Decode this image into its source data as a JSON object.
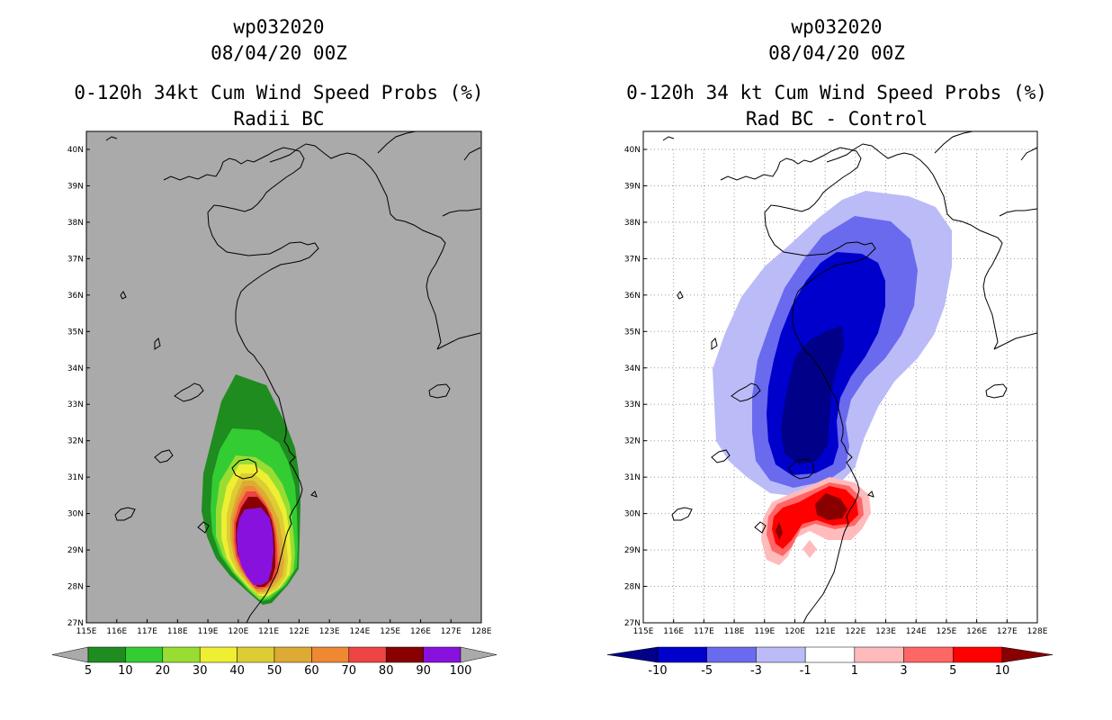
{
  "left_panel": {
    "storm_id": "wp032020",
    "datetime": "08/04/20 00Z",
    "title": "0-120h 34kt Cum Wind Speed Probs (%)",
    "subtitle": "Radii BC",
    "colorbar": {
      "labels": [
        "5",
        "10",
        "20",
        "30",
        "40",
        "50",
        "60",
        "70",
        "80",
        "90",
        "100"
      ],
      "colors": [
        "#1e8c1e",
        "#33cc33",
        "#99dd33",
        "#eeee33",
        "#ddcc33",
        "#ddaa33",
        "#ee8833",
        "#ee4444",
        "#880000",
        "#8811dd"
      ],
      "end_color": "#aaaaaa"
    },
    "colors": {
      "background": "#aaaaaa"
    }
  },
  "right_panel": {
    "storm_id": "wp032020",
    "datetime": "08/04/20 00Z",
    "title": "0-120h 34 kt Cum Wind Speed Probs (%)",
    "subtitle": "Rad BC - Control",
    "colorbar": {
      "labels": [
        "-10",
        "-5",
        "-3",
        "-1",
        "1",
        "3",
        "5",
        "10"
      ],
      "colors": [
        "#0000cc",
        "#6a6aee",
        "#bbbbf8",
        "#ffffff",
        "#ffbbbb",
        "#ff6666",
        "#ff0000"
      ],
      "low_end": "#000088",
      "high_end": "#880000"
    }
  },
  "axes": {
    "lon_labels": [
      "115E",
      "116E",
      "117E",
      "118E",
      "119E",
      "120E",
      "121E",
      "122E",
      "123E",
      "124E",
      "125E",
      "126E",
      "127E",
      "128E"
    ],
    "lat_labels": [
      "27N",
      "28N",
      "29N",
      "30N",
      "31N",
      "32N",
      "33N",
      "34N",
      "35N",
      "36N",
      "37N",
      "38N",
      "39N",
      "40N"
    ]
  },
  "field": {
    "units": "%",
    "left_probability_contours": [
      {
        "level": 5,
        "lat_range": [
          27.5,
          33.8
        ]
      },
      {
        "level": 10,
        "lat_range": [
          27.6,
          32.3
        ]
      },
      {
        "level": 20,
        "lat_range": [
          27.7,
          31.4
        ]
      },
      {
        "level": 30,
        "lat_range": [
          27.7,
          31.1
        ]
      },
      {
        "level": 40,
        "lat_range": [
          27.8,
          30.9
        ]
      },
      {
        "level": 50,
        "lat_range": [
          27.8,
          30.7
        ]
      },
      {
        "level": 60,
        "lat_range": [
          27.9,
          30.5
        ]
      },
      {
        "level": 70,
        "lat_range": [
          27.9,
          30.4
        ]
      },
      {
        "level": 80,
        "lat_range": [
          28.0,
          30.3
        ]
      },
      {
        "level": 90,
        "lat_range": [
          28.0,
          30.1
        ]
      }
    ]
  }
}
